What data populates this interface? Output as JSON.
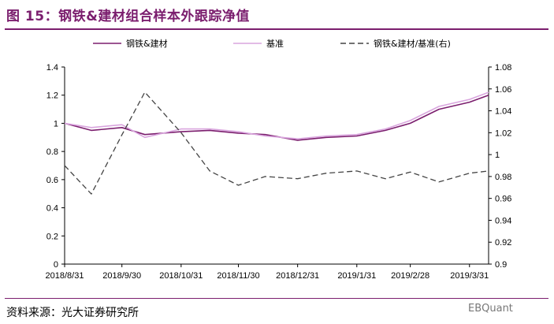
{
  "title": "图 15：钢铁&建材组合样本外跟踪净值",
  "source": "资料来源：光大证券研究所",
  "watermark": "EBQuant",
  "chart_data": {
    "type": "line",
    "x": [
      "2018/8/31",
      "2018/9/14",
      "2018/9/30",
      "2018/10/12",
      "2018/10/31",
      "2018/11/15",
      "2018/11/30",
      "2018/12/14",
      "2018/12/31",
      "2019/1/15",
      "2019/1/31",
      "2019/2/15",
      "2019/2/28",
      "2019/3/15",
      "2019/3/31",
      "2019/4/10"
    ],
    "xticks": [
      "2018/8/31",
      "2018/9/30",
      "2018/10/31",
      "2018/11/30",
      "2018/12/31",
      "2019/1/31",
      "2019/2/28",
      "2019/3/31"
    ],
    "ylim": [
      0,
      1.4
    ],
    "yticks": [
      "0",
      "0.2",
      "0.4",
      "0.6",
      "0.8",
      "1",
      "1.2",
      "1.4"
    ],
    "y2lim": [
      0.9,
      1.08
    ],
    "y2ticks": [
      "0.9",
      "0.92",
      "0.94",
      "0.96",
      "0.98",
      "1",
      "1.02",
      "1.04",
      "1.06",
      "1.08"
    ],
    "legend_position": "top",
    "series": [
      {
        "name": "钢铁&建材",
        "axis": "left",
        "color": "#7b1e6e",
        "style": "solid",
        "values": [
          1.0,
          0.95,
          0.97,
          0.92,
          0.94,
          0.95,
          0.93,
          0.92,
          0.88,
          0.9,
          0.91,
          0.95,
          1.0,
          1.1,
          1.15,
          1.2
        ]
      },
      {
        "name": "基准",
        "axis": "left",
        "color": "#d9a5de",
        "style": "solid",
        "values": [
          1.0,
          0.97,
          0.99,
          0.9,
          0.96,
          0.96,
          0.94,
          0.91,
          0.89,
          0.91,
          0.92,
          0.96,
          1.02,
          1.12,
          1.17,
          1.22
        ]
      },
      {
        "name": "钢铁&建材/基准(右)",
        "axis": "right",
        "color": "#444444",
        "style": "dashed",
        "values": [
          0.99,
          0.964,
          1.018,
          1.057,
          1.02,
          0.985,
          0.972,
          0.98,
          0.978,
          0.983,
          0.985,
          0.978,
          0.984,
          0.975,
          0.983,
          0.985
        ]
      }
    ]
  }
}
